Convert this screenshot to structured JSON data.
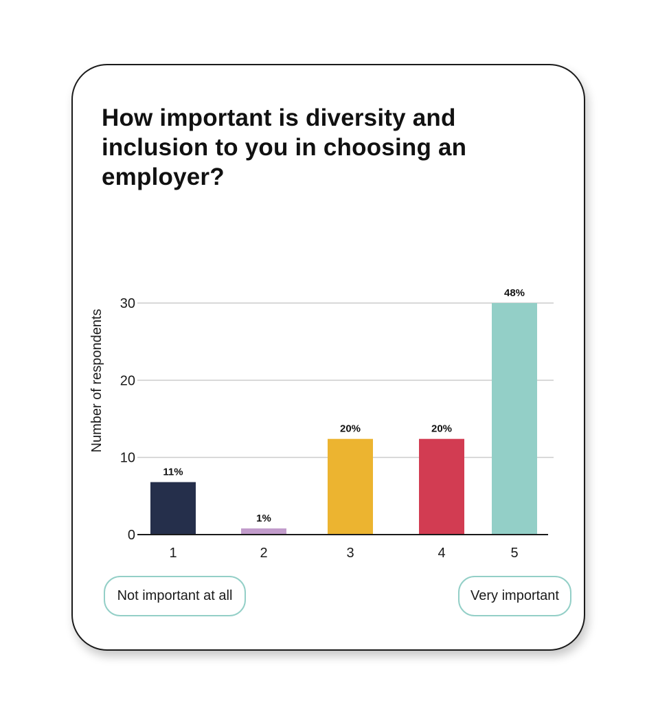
{
  "chart_data": {
    "type": "bar",
    "title": "How important is diversity and inclusion to you in choosing an employer?",
    "ylabel": "Number of respondents",
    "xlabel": "",
    "categories": [
      "1",
      "2",
      "3",
      "4",
      "5"
    ],
    "values": [
      6.8,
      0.8,
      12.4,
      12.4,
      30.0
    ],
    "data_labels": [
      "11%",
      "1%",
      "20%",
      "20%",
      "48%"
    ],
    "colors": [
      "#252f4b",
      "#c29ccb",
      "#ecb430",
      "#d23c52",
      "#93cfc7"
    ],
    "ylim": [
      0,
      30
    ],
    "yticks": [
      0,
      10,
      20,
      30
    ],
    "grid": true,
    "scale_labels": {
      "low": "Not important at all",
      "high": "Very important"
    }
  }
}
